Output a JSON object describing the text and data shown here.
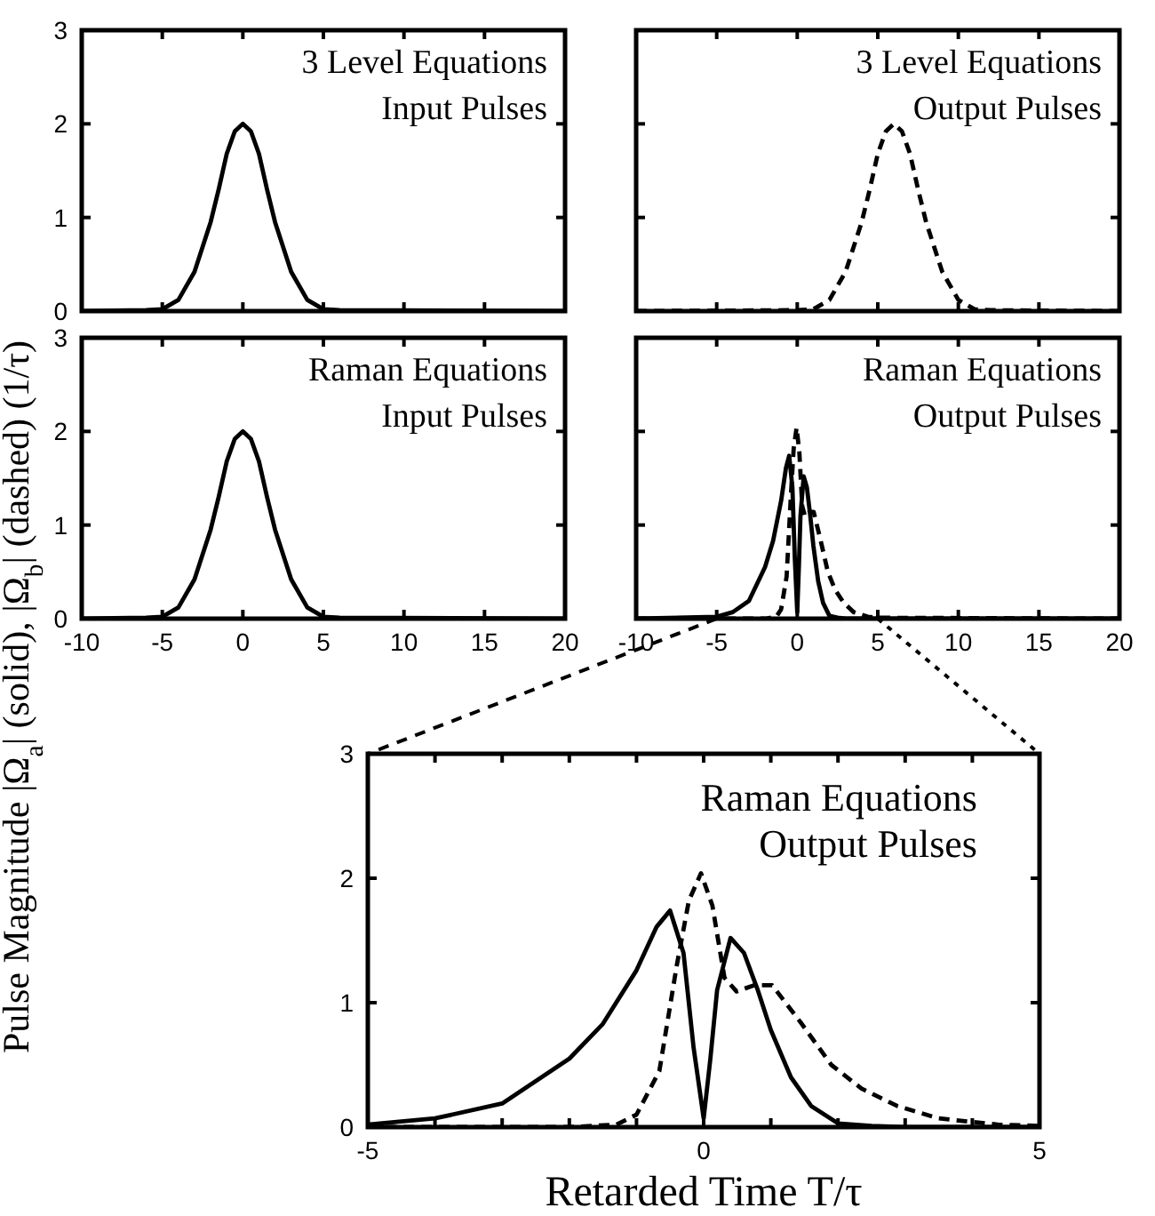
{
  "chart_data": [
    {
      "type": "line",
      "ylabel": "Pulse Magnitude |Ω$_{a}$| (solid), |Ω$_{b}$| (dashed)  (1/τ)",
      "annotations": [
        "3 Level Equations",
        "Input Pulses"
      ],
      "xlim": [
        -10,
        20
      ],
      "xticks": [
        -10,
        -5,
        0,
        5,
        10,
        15,
        20
      ],
      "ylim": [
        0,
        3
      ],
      "yticks": [
        0,
        1,
        2,
        3
      ],
      "tick_labels": "y",
      "series": [
        {
          "color": "#000000",
          "line_style": "solid",
          "x": [
            -10,
            -6,
            -5,
            -4,
            -3,
            -2,
            -1.5,
            -1,
            -0.5,
            0,
            0.5,
            1,
            1.5,
            2,
            3,
            4,
            5,
            6,
            20
          ],
          "values": [
            0,
            0.01,
            0.02,
            0.12,
            0.42,
            0.95,
            1.3,
            1.68,
            1.92,
            2,
            1.92,
            1.68,
            1.3,
            0.95,
            0.42,
            0.12,
            0.02,
            0.01,
            0
          ]
        }
      ]
    },
    {
      "type": "line",
      "annotations": [
        "3 Level Equations",
        "Output Pulses"
      ],
      "xlim": [
        -10,
        20
      ],
      "xticks": [
        -10,
        -5,
        0,
        5,
        10,
        15,
        20
      ],
      "ylim": [
        0,
        3
      ],
      "yticks": [
        0,
        1,
        2,
        3
      ],
      "tick_labels": false,
      "series": [
        {
          "color": "#000000",
          "line_style": "dashed",
          "x": [
            -10,
            0,
            1,
            2,
            3,
            4,
            4.5,
            5,
            5.5,
            6,
            6.5,
            7,
            7.5,
            8,
            9,
            10,
            11,
            12,
            20
          ],
          "values": [
            0,
            0.01,
            0.02,
            0.12,
            0.42,
            0.95,
            1.3,
            1.68,
            1.92,
            2,
            1.92,
            1.68,
            1.3,
            0.95,
            0.42,
            0.12,
            0.02,
            0.01,
            0
          ]
        }
      ]
    },
    {
      "type": "line",
      "annotations": [
        "Raman Equations",
        "Input Pulses"
      ],
      "xlim": [
        -10,
        20
      ],
      "xticks": [
        -10,
        -5,
        0,
        5,
        10,
        15,
        20
      ],
      "ylim": [
        0,
        3
      ],
      "yticks": [
        0,
        1,
        2,
        3
      ],
      "series": [
        {
          "color": "#000000",
          "line_style": "solid",
          "x": [
            -10,
            -6,
            -5,
            -4,
            -3,
            -2,
            -1.5,
            -1,
            -0.5,
            0,
            0.5,
            1,
            1.5,
            2,
            3,
            4,
            5,
            6,
            20
          ],
          "values": [
            0,
            0.01,
            0.02,
            0.12,
            0.42,
            0.95,
            1.3,
            1.68,
            1.92,
            2,
            1.92,
            1.68,
            1.3,
            0.95,
            0.42,
            0.12,
            0.02,
            0.01,
            0
          ]
        }
      ]
    },
    {
      "type": "line",
      "annotations": [
        "Raman Equations",
        "Output Pulses"
      ],
      "xlim": [
        -10,
        20
      ],
      "xticks": [
        -10,
        -5,
        0,
        5,
        10,
        15,
        20
      ],
      "ylim": [
        0,
        3
      ],
      "yticks": [
        0,
        1,
        2,
        3
      ],
      "tick_labels": "x",
      "series": [
        {
          "color": "#000000",
          "line_style": "solid",
          "x": [
            -10,
            -5,
            -4,
            -3,
            -2,
            -1.5,
            -1,
            -0.7,
            -0.5,
            -0.3,
            -0.15,
            0,
            0.1,
            0.2,
            0.4,
            0.6,
            0.8,
            1,
            1.3,
            1.6,
            2,
            2.5,
            3,
            20
          ],
          "values": [
            0,
            0.02,
            0.07,
            0.19,
            0.55,
            0.83,
            1.26,
            1.61,
            1.74,
            1.4,
            0.64,
            0.07,
            0.55,
            1.1,
            1.52,
            1.4,
            1.11,
            0.78,
            0.4,
            0.17,
            0.03,
            0.01,
            0,
            0
          ]
        },
        {
          "color": "#000000",
          "line_style": "dashed",
          "x": [
            -10,
            -2,
            -1.3,
            -1,
            -0.66,
            -0.4,
            -0.22,
            -0.04,
            0.13,
            0.31,
            0.49,
            0.75,
            1.02,
            1.46,
            1.9,
            2.35,
            2.88,
            3.5,
            4.38,
            5,
            20
          ],
          "values": [
            0,
            0,
            0.02,
            0.1,
            0.45,
            1.3,
            1.82,
            2.04,
            1.78,
            1.2,
            1.09,
            1.14,
            1.14,
            0.83,
            0.5,
            0.31,
            0.17,
            0.07,
            0.02,
            0.01,
            0
          ]
        }
      ]
    },
    {
      "type": "line",
      "xlabel": "Retarded Time T/τ",
      "annotations": [
        "Raman Equations",
        "Output Pulses"
      ],
      "xlim": [
        -5,
        5
      ],
      "xticks": [
        -5,
        {
          "value": -4,
          "label": null
        },
        {
          "value": -3,
          "label": null
        },
        {
          "value": -2,
          "label": null
        },
        {
          "value": -1,
          "label": null
        },
        0,
        {
          "value": 1,
          "label": null
        },
        {
          "value": 2,
          "label": null
        },
        {
          "value": 3,
          "label": null
        },
        {
          "value": 4,
          "label": null
        },
        5
      ],
      "ylim": [
        0,
        3
      ],
      "yticks": [
        0,
        1,
        2,
        3
      ],
      "series": [
        {
          "color": "#000000",
          "line_style": "solid",
          "x": [
            -5,
            -4,
            -3,
            -2,
            -1.5,
            -1,
            -0.7,
            -0.5,
            -0.3,
            -0.15,
            0,
            0.1,
            0.2,
            0.4,
            0.6,
            0.8,
            1,
            1.3,
            1.6,
            2,
            2.5,
            3,
            5
          ],
          "values": [
            0.02,
            0.07,
            0.19,
            0.55,
            0.83,
            1.26,
            1.61,
            1.74,
            1.4,
            0.64,
            0.07,
            0.55,
            1.1,
            1.52,
            1.4,
            1.11,
            0.78,
            0.4,
            0.17,
            0.03,
            0.01,
            0,
            0
          ]
        },
        {
          "color": "#000000",
          "line_style": "dashed",
          "x": [
            -5,
            -2,
            -1.3,
            -1,
            -0.66,
            -0.4,
            -0.22,
            -0.04,
            0.13,
            0.31,
            0.49,
            0.75,
            1.02,
            1.46,
            1.9,
            2.35,
            2.88,
            3.5,
            4.38,
            5
          ],
          "values": [
            0,
            0,
            0.02,
            0.1,
            0.45,
            1.3,
            1.82,
            2.04,
            1.78,
            1.2,
            1.09,
            1.14,
            1.14,
            0.83,
            0.5,
            0.31,
            0.17,
            0.07,
            0.02,
            0.01
          ]
        }
      ]
    }
  ]
}
